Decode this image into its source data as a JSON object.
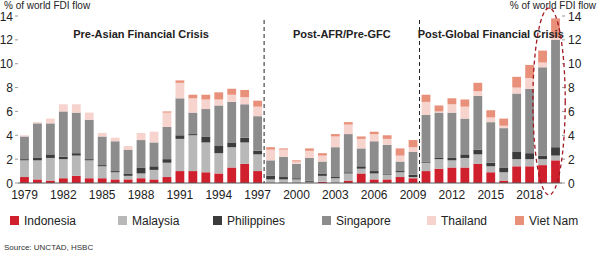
{
  "chart_data": {
    "type": "bar",
    "stacked": true,
    "grid": false,
    "legend": "bottom",
    "y_label": "% of world FDI flow",
    "y2_label": "% of world FDI flow",
    "source": "Source: UNCTAD, HSBC",
    "annotations": [
      {
        "text": "Pre-Asian Financial Crisis",
        "span": [
          0,
          18
        ]
      },
      {
        "text": "Post-AFR/Pre-GFC",
        "span": [
          19,
          30
        ]
      },
      {
        "text": "Post-Global Financial Crisis",
        "span": [
          31,
          41
        ]
      }
    ],
    "categories": [
      "1979",
      null,
      null,
      "1982",
      null,
      null,
      "1985",
      null,
      null,
      "1988",
      null,
      null,
      "1991",
      null,
      null,
      "1994",
      null,
      null,
      "1997",
      null,
      null,
      "2000",
      null,
      null,
      "2003",
      null,
      null,
      "2006",
      null,
      null,
      "2009",
      null,
      null,
      "2012",
      null,
      null,
      "2015",
      null,
      null,
      "2018",
      null,
      null
    ],
    "ylim": [
      0,
      14
    ],
    "yticks": [
      0,
      2,
      4,
      6,
      8,
      10,
      12,
      14
    ],
    "y2lim": [
      0,
      14
    ],
    "y2ticks": [
      0,
      2,
      4,
      6,
      8,
      10,
      12,
      14
    ],
    "series": [
      {
        "name": "Indonesia",
        "color": "#d0202e",
        "values": [
          0.5,
          0.3,
          0.2,
          0.4,
          0.6,
          0.4,
          0.4,
          0.3,
          0.3,
          0.4,
          0.3,
          0.5,
          1.0,
          1.0,
          0.9,
          0.8,
          1.3,
          1.6,
          1.0,
          0.0,
          0.0,
          0.0,
          0.0,
          0.1,
          0.0,
          0.2,
          0.8,
          0.3,
          0.3,
          0.5,
          0.4,
          1.0,
          1.2,
          1.3,
          1.3,
          1.6,
          0.9,
          0.2,
          1.4,
          1.4,
          1.5,
          1.9
        ]
      },
      {
        "name": "Malaysia",
        "color": "#b8b8b8",
        "values": [
          1.4,
          1.6,
          1.9,
          1.6,
          1.7,
          1.5,
          1.0,
          0.6,
          0.3,
          0.4,
          0.8,
          1.2,
          2.7,
          3.0,
          2.5,
          1.7,
          1.7,
          1.8,
          1.4,
          0.3,
          0.3,
          0.3,
          0.1,
          0.5,
          0.4,
          0.6,
          0.4,
          0.5,
          0.4,
          0.4,
          0.1,
          0.7,
          0.8,
          0.6,
          0.8,
          0.8,
          0.5,
          0.7,
          0.6,
          0.6,
          0.5,
          0.4
        ]
      },
      {
        "name": "Philippines",
        "color": "#3c3c3c",
        "values": [
          0.1,
          0.2,
          0.3,
          0.2,
          0.2,
          0.1,
          0.1,
          0.1,
          0.2,
          0.5,
          0.3,
          0.3,
          0.3,
          0.1,
          0.5,
          0.6,
          0.4,
          0.4,
          0.3,
          0.3,
          0.2,
          0.1,
          0.1,
          0.2,
          0.1,
          0.1,
          0.2,
          0.2,
          0.1,
          0.1,
          0.2,
          0.1,
          0.1,
          0.2,
          0.3,
          0.4,
          0.3,
          0.4,
          0.6,
          0.5,
          0.3,
          0.7
        ]
      },
      {
        "name": "Singapore",
        "color": "#8c8c8c",
        "values": [
          1.9,
          2.9,
          2.6,
          3.8,
          3.4,
          3.3,
          2.4,
          2.5,
          2.0,
          2.3,
          2.0,
          2.7,
          3.1,
          1.8,
          2.3,
          3.4,
          3.4,
          2.8,
          2.9,
          1.3,
          1.7,
          1.2,
          1.9,
          1.0,
          2.5,
          3.2,
          1.5,
          2.5,
          2.4,
          0.8,
          1.9,
          3.9,
          3.8,
          3.8,
          3.0,
          4.5,
          3.4,
          3.3,
          4.9,
          5.4,
          7.4,
          9.0
        ]
      },
      {
        "name": "Thailand",
        "color": "#f6d3cd",
        "values": [
          0.1,
          0.1,
          0.4,
          0.6,
          0.7,
          0.6,
          0.3,
          0.3,
          0.3,
          0.6,
          0.9,
          1.2,
          1.3,
          1.2,
          0.8,
          0.5,
          0.6,
          0.6,
          0.8,
          0.9,
          0.6,
          0.2,
          0.6,
          0.5,
          0.9,
          0.8,
          0.8,
          0.6,
          0.5,
          0.5,
          0.4,
          1.1,
          0.1,
          0.7,
          1.0,
          0.4,
          0.4,
          0.2,
          0.5,
          0.9,
          0.4,
          0.2
        ]
      },
      {
        "name": "Viet Nam",
        "color": "#e8907a",
        "values": [
          0.0,
          0.0,
          0.0,
          0.0,
          0.0,
          0.0,
          0.0,
          0.0,
          0.0,
          0.0,
          0.0,
          0.1,
          0.2,
          0.3,
          0.4,
          0.6,
          0.5,
          0.6,
          0.5,
          0.2,
          0.1,
          0.1,
          0.2,
          0.2,
          0.2,
          0.2,
          0.2,
          0.2,
          0.3,
          0.6,
          0.6,
          0.6,
          0.5,
          0.5,
          0.6,
          0.7,
          0.6,
          0.6,
          0.9,
          1.1,
          1.0,
          1.6
        ]
      }
    ]
  }
}
